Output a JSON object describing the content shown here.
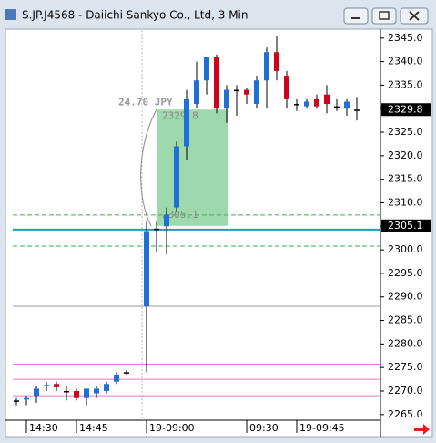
{
  "window_title": "S.JP.J4568 - Daiichi Sankyo Co., Ltd, 3 Min",
  "chart_data": {
    "type": "candlestick",
    "categories": [
      null,
      "14:30",
      null,
      null,
      null,
      null,
      "14:45",
      null,
      null,
      null,
      null,
      null,
      null,
      "19-09:00",
      null,
      null,
      null,
      null,
      null,
      null,
      null,
      null,
      null,
      "09:30",
      null,
      null,
      null,
      null,
      "19-09:45",
      null,
      null,
      null,
      null,
      null,
      null
    ],
    "open": [
      2268,
      2268.2,
      2269,
      2271,
      2271.5,
      2270,
      2270,
      2268.5,
      2269.5,
      2270,
      2272,
      2274,
      null,
      2288,
      2304.5,
      2305,
      2309,
      2322,
      2331,
      2336,
      2341,
      2330,
      2334,
      2334,
      2331,
      2336,
      2342,
      2337,
      2331,
      2330.5,
      2332,
      2333,
      2330.5,
      2330,
      2329.8
    ],
    "high": [
      2268.5,
      2269,
      2271,
      2272,
      2272,
      2271,
      2270.5,
      2270.5,
      2271,
      2272,
      2274,
      2274.5,
      null,
      2306,
      2306,
      2309,
      2323,
      2334,
      2340,
      2341,
      2341.5,
      2335,
      2335,
      2334.5,
      2337,
      2343,
      2345.5,
      2338,
      2332,
      2332,
      2333,
      2335,
      2332,
      2332,
      2332.5
    ],
    "low": [
      2267,
      2267,
      2267.5,
      2270,
      2270,
      2268,
      2268,
      2267,
      2268.5,
      2269.5,
      2271.5,
      2273.5,
      null,
      2274,
      2299.5,
      2299,
      2308,
      2319,
      2330,
      2333,
      2329,
      2327,
      2328.5,
      2331,
      2330,
      2330,
      2336,
      2330,
      2329.5,
      2330,
      2330,
      2329,
      2329.5,
      2328.5,
      2327.5
    ],
    "close": [
      2268,
      2268.5,
      2270.5,
      2271.3,
      2270.8,
      2270,
      2268.5,
      2270.5,
      2270.5,
      2271.5,
      2273.5,
      2274,
      null,
      2304,
      2304.5,
      2307.5,
      2322,
      2332,
      2336,
      2341,
      2330,
      2334,
      2334,
      2333,
      2336,
      2342,
      2338,
      2332,
      2331,
      2331.5,
      2330.5,
      2331,
      2330.5,
      2331.5,
      2329.8
    ],
    "up_color": "#1e6fd6",
    "down_color": "#d0021b",
    "flat_color": "#000000",
    "ylim": [
      2263.8,
      2346.7
    ],
    "yticks": [
      {
        "value": 2265,
        "label": "2265.0"
      },
      {
        "value": 2270,
        "label": "2270.0"
      },
      {
        "value": 2275,
        "label": "2275.0"
      },
      {
        "value": 2280,
        "label": "2280.0"
      },
      {
        "value": 2285,
        "label": "2285.0"
      },
      {
        "value": 2290,
        "label": "2290.0"
      },
      {
        "value": 2295,
        "label": "2295.0"
      },
      {
        "value": 2300,
        "label": "2300.0"
      },
      {
        "value": 2305,
        "label": "2305.0"
      },
      {
        "value": 2310,
        "label": "2310.0"
      },
      {
        "value": 2315,
        "label": "2315.0"
      },
      {
        "value": 2320,
        "label": "2320.0"
      },
      {
        "value": 2325,
        "label": "2325.0"
      },
      {
        "value": 2330,
        "label": "2330.0"
      },
      {
        "value": 2335,
        "label": "2335.0"
      },
      {
        "value": 2340,
        "label": "2340.0"
      },
      {
        "value": 2345,
        "label": "2345.0"
      }
    ],
    "levels": [
      {
        "value": 2307.4,
        "color": "#33b04a",
        "style": "dash"
      },
      {
        "value": 2300.8,
        "color": "#33b04a",
        "style": "dash"
      },
      {
        "value": 2304.3,
        "color": "#1aa0b8",
        "style": "thick"
      },
      {
        "value": 2288,
        "color": "#9a9a9a",
        "style": "solid"
      },
      {
        "value": 2275.7,
        "color": "#e07ad0",
        "style": "solid"
      },
      {
        "value": 2272.5,
        "color": "#e07ad0",
        "style": "solid"
      },
      {
        "value": 2269,
        "color": "#e07ad0",
        "style": "solid"
      }
    ],
    "axis_tags": [
      2329.8,
      2305.1
    ],
    "measure": {
      "from": 2305.1,
      "to": 2329.8,
      "label": "24.70 JPY"
    }
  }
}
